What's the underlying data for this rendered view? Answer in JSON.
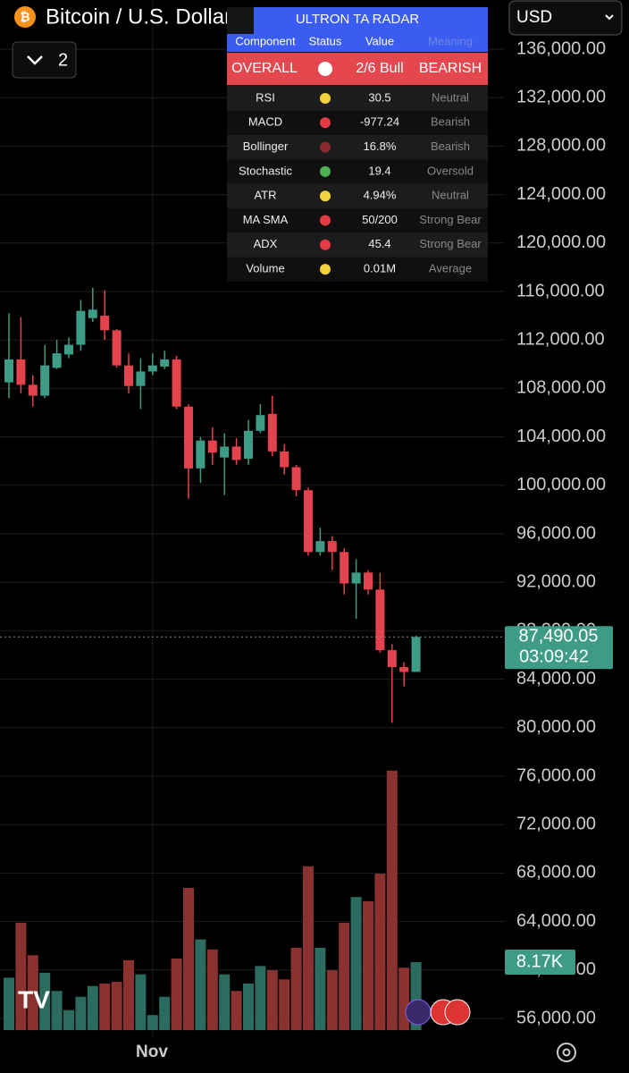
{
  "header": {
    "title": "Bitcoin / U.S. Dollar",
    "currency": "USD",
    "indicator_count": 2
  },
  "radar": {
    "title": "ULTRON TA RADAR",
    "columns": [
      "Component",
      "Status",
      "Value",
      "Meaning"
    ],
    "overall": {
      "component": "OVERALL",
      "status": "#ffffff",
      "value": "2/6 Bull",
      "meaning": "BEARISH"
    },
    "rows": [
      {
        "component": "RSI",
        "status": "#f2d13c",
        "value": "30.5",
        "meaning": "Neutral"
      },
      {
        "component": "MACD",
        "status": "#e53b44",
        "value": "-977.24",
        "meaning": "Bearish"
      },
      {
        "component": "Bollinger",
        "status": "#8b2a2e",
        "value": "16.8%",
        "meaning": "Bearish"
      },
      {
        "component": "Stochastic",
        "status": "#4caf50",
        "value": "19.4",
        "meaning": "Oversold"
      },
      {
        "component": "ATR",
        "status": "#f2d13c",
        "value": "4.94%",
        "meaning": "Neutral"
      },
      {
        "component": "MA SMA",
        "status": "#e53b44",
        "value": "50/200",
        "meaning": "Strong Bear"
      },
      {
        "component": "ADX",
        "status": "#e53b44",
        "value": "45.4",
        "meaning": "Strong Bear"
      },
      {
        "component": "Volume",
        "status": "#f2d13c",
        "value": "0.01M",
        "meaning": "Average"
      }
    ]
  },
  "chart_data": {
    "type": "candlestick",
    "ylim": [
      56000,
      136000
    ],
    "yticks": [
      {
        "value": 56000,
        "label": "56,000.00"
      },
      {
        "value": 60000,
        "label": "60,000.00"
      },
      {
        "value": 64000,
        "label": "64,000.00"
      },
      {
        "value": 68000,
        "label": "68,000.00"
      },
      {
        "value": 72000,
        "label": "72,000.00"
      },
      {
        "value": 76000,
        "label": "76,000.00"
      },
      {
        "value": 80000,
        "label": "80,000.00"
      },
      {
        "value": 84000,
        "label": "84,000.00"
      },
      {
        "value": 88000,
        "label": "88,000.00"
      },
      {
        "value": 92000,
        "label": "92,000.00"
      },
      {
        "value": 96000,
        "label": "96,000.00"
      },
      {
        "value": 100000,
        "label": "100,000.00"
      },
      {
        "value": 104000,
        "label": "104,000.00"
      },
      {
        "value": 108000,
        "label": "108,000.00"
      },
      {
        "value": 112000,
        "label": "112,000.00"
      },
      {
        "value": 116000,
        "label": "116,000.00"
      },
      {
        "value": 120000,
        "label": "120,000.00"
      },
      {
        "value": 124000,
        "label": "124,000.00"
      },
      {
        "value": 128000,
        "label": "128,000.00"
      },
      {
        "value": 132000,
        "label": "132,000.00"
      },
      {
        "value": 136000,
        "label": "136,000.00"
      }
    ],
    "categories": [
      null,
      null,
      null,
      null,
      null,
      null,
      null,
      null,
      null,
      null,
      null,
      null,
      "Nov",
      null,
      null,
      null,
      null,
      null,
      null,
      null,
      null,
      null,
      null,
      null,
      null,
      null,
      null,
      null,
      null,
      null,
      null,
      null,
      null,
      null,
      null
    ],
    "open": [
      108500,
      110400,
      108300,
      107400,
      109700,
      110800,
      111600,
      113800,
      114000,
      112800,
      109900,
      108200,
      109400,
      109800,
      110400,
      106500,
      101400,
      103700,
      102300,
      103200,
      102200,
      104500,
      105900,
      102800,
      101500,
      99600,
      94500,
      95400,
      94500,
      91900,
      92800,
      91400,
      86400,
      85000,
      84600
    ],
    "high": [
      114200,
      113900,
      109100,
      111600,
      112000,
      112200,
      115300,
      116300,
      116100,
      112900,
      110900,
      110500,
      110900,
      111100,
      110700,
      106700,
      104000,
      104800,
      104300,
      103900,
      105400,
      106700,
      107400,
      103400,
      101700,
      99800,
      96500,
      95800,
      94800,
      93900,
      93000,
      92800,
      86900,
      85400,
      87600
    ],
    "low": [
      107200,
      107600,
      106500,
      107200,
      109600,
      110500,
      111100,
      113500,
      112000,
      109700,
      107600,
      106300,
      109100,
      109600,
      106300,
      98900,
      100200,
      101700,
      99200,
      101700,
      101700,
      104300,
      102400,
      100900,
      99100,
      94200,
      94200,
      93000,
      91000,
      89000,
      91000,
      86200,
      80400,
      83400,
      84600
    ],
    "close": [
      110400,
      108300,
      107400,
      109900,
      110900,
      111600,
      114400,
      114500,
      112800,
      109900,
      108200,
      109400,
      109900,
      110400,
      106500,
      101400,
      103700,
      102700,
      103200,
      102100,
      104500,
      105800,
      102800,
      101500,
      99600,
      94500,
      95400,
      94500,
      91900,
      92800,
      91400,
      86400,
      85000,
      84600,
      87490.05
    ],
    "volume": [
      6.3,
      12.9,
      9.0,
      6.9,
      4.7,
      2.4,
      4.0,
      5.3,
      5.6,
      5.8,
      8.4,
      6.7,
      1.8,
      4.0,
      8.6,
      17.1,
      10.9,
      9.7,
      6.7,
      4.7,
      5.6,
      7.7,
      7.2,
      6.1,
      9.9,
      19.7,
      9.9,
      7.2,
      12.9,
      16.0,
      15.5,
      18.8,
      31.2,
      7.5,
      8.17
    ],
    "volume_lim": [
      0,
      31.5
    ],
    "colors": {
      "up": "#3e9c86",
      "down": "#e2434c",
      "volume_up": "#2c6b5f",
      "volume_down": "#8a3230"
    },
    "last_price": {
      "value": 87490.05,
      "label": "87,490.05"
    },
    "countdown": "03:09:42",
    "last_volume": {
      "value": 8.17,
      "label": "8.17K"
    }
  }
}
